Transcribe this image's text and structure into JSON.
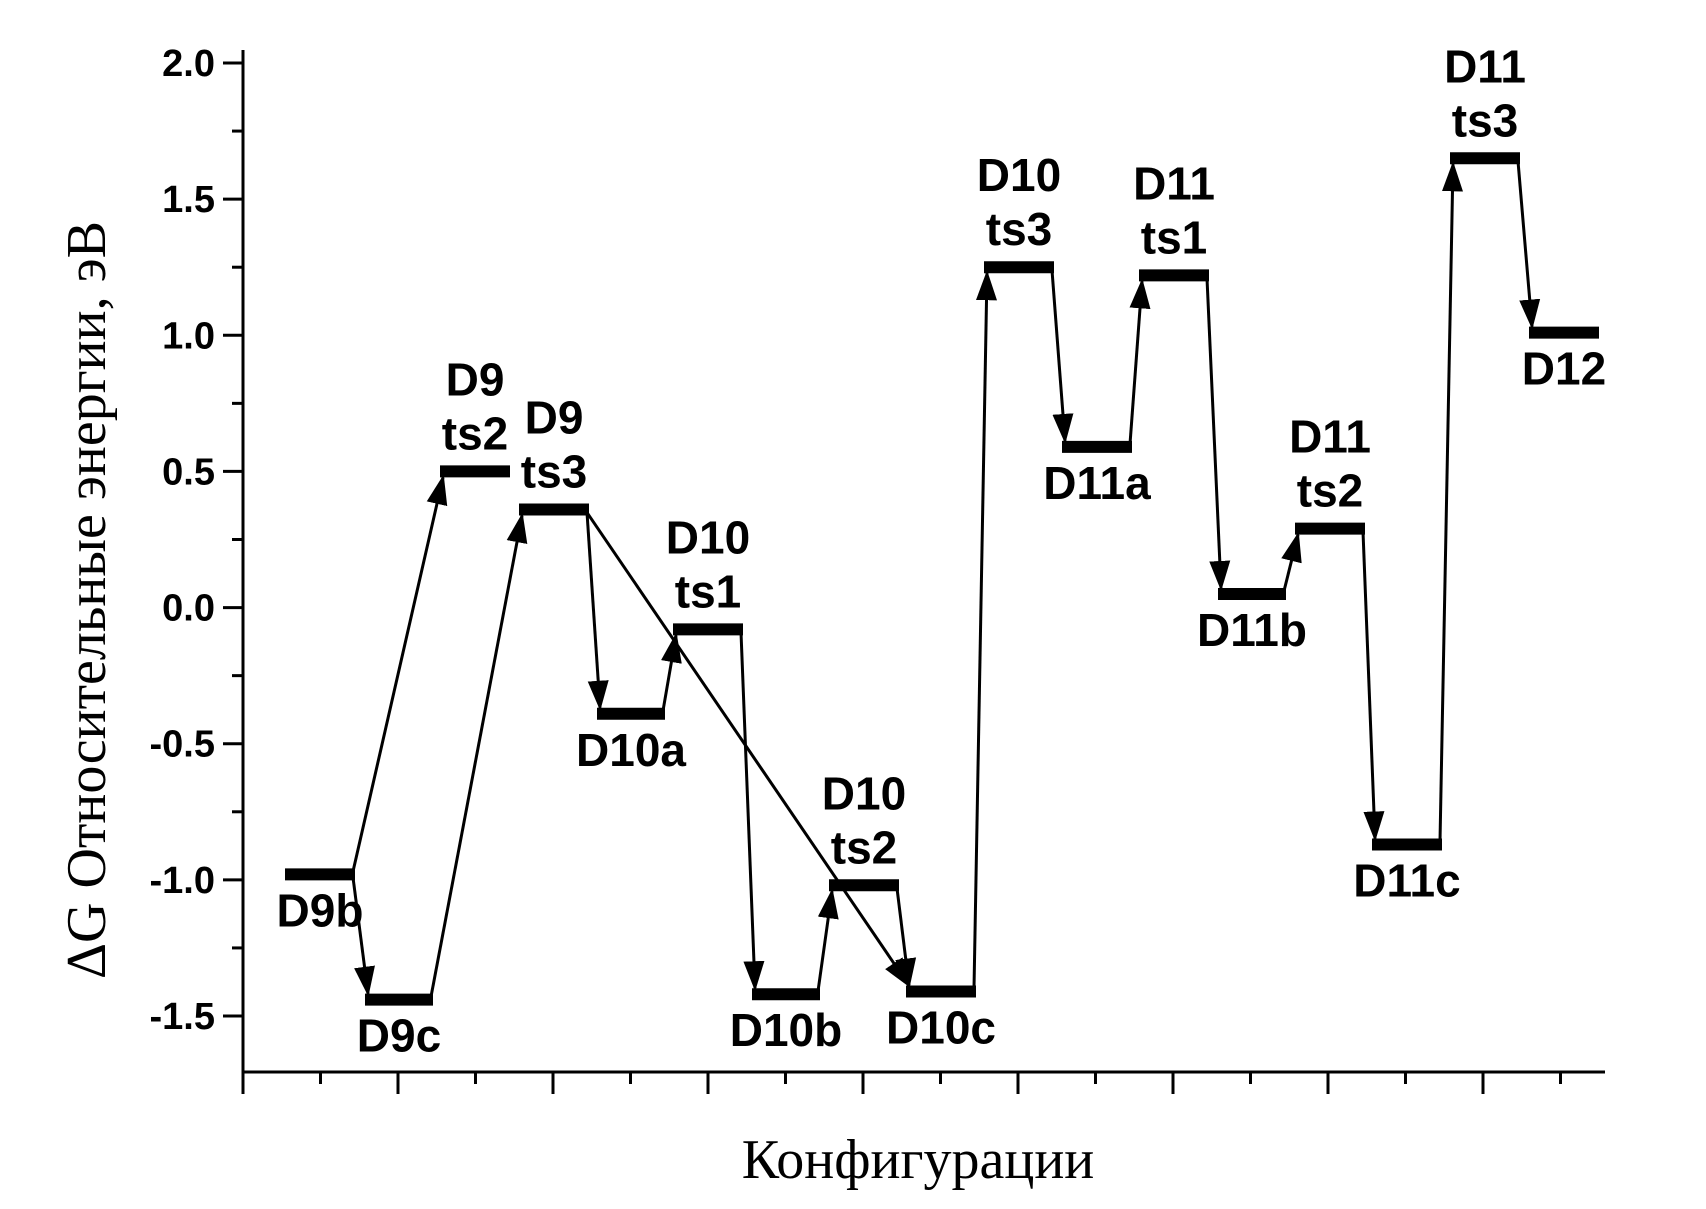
{
  "chart_data": {
    "type": "energy-level-diagram",
    "title": "",
    "xlabel": "Конфигурации",
    "ylabel": "ΔG  Относительные энергии, эВ",
    "ylim": [
      -1.7,
      2.0
    ],
    "yticks": [
      "2.0",
      "1.5",
      "1.0",
      "0.5",
      "0.0",
      "-0.5",
      "-1.0",
      "-1.5"
    ],
    "ytick_values": [
      2.0,
      1.5,
      1.0,
      0.5,
      0.0,
      -0.5,
      -1.0,
      -1.5
    ],
    "grid": false,
    "legend": "none",
    "states": [
      {
        "id": "D9b",
        "label_lines": [
          "D9b"
        ],
        "energy": -0.98,
        "label_pos": "below"
      },
      {
        "id": "D9c",
        "label_lines": [
          "D9c"
        ],
        "energy": -1.44,
        "label_pos": "below"
      },
      {
        "id": "D9ts2",
        "label_lines": [
          "D9",
          "ts2"
        ],
        "energy": 0.5,
        "label_pos": "above"
      },
      {
        "id": "D9ts3",
        "label_lines": [
          "D9",
          "ts3"
        ],
        "energy": 0.36,
        "label_pos": "above"
      },
      {
        "id": "D10a",
        "label_lines": [
          "D10a"
        ],
        "energy": -0.39,
        "label_pos": "below"
      },
      {
        "id": "D10ts1",
        "label_lines": [
          "D10",
          "ts1"
        ],
        "energy": -0.08,
        "label_pos": "above"
      },
      {
        "id": "D10b",
        "label_lines": [
          "D10b"
        ],
        "energy": -1.42,
        "label_pos": "below"
      },
      {
        "id": "D10ts2",
        "label_lines": [
          "D10",
          "ts2"
        ],
        "energy": -1.02,
        "label_pos": "above"
      },
      {
        "id": "D10c",
        "label_lines": [
          "D10c"
        ],
        "energy": -1.41,
        "label_pos": "below"
      },
      {
        "id": "D10ts3",
        "label_lines": [
          "D10",
          "ts3"
        ],
        "energy": 1.25,
        "label_pos": "above"
      },
      {
        "id": "D11a",
        "label_lines": [
          "D11a"
        ],
        "energy": 0.59,
        "label_pos": "below"
      },
      {
        "id": "D11ts1",
        "label_lines": [
          "D11",
          "ts1"
        ],
        "energy": 1.22,
        "label_pos": "above"
      },
      {
        "id": "D11b",
        "label_lines": [
          "D11b"
        ],
        "energy": 0.05,
        "label_pos": "below"
      },
      {
        "id": "D11ts2",
        "label_lines": [
          "D11",
          "ts2"
        ],
        "energy": 0.29,
        "label_pos": "above"
      },
      {
        "id": "D11c",
        "label_lines": [
          "D11c"
        ],
        "energy": -0.87,
        "label_pos": "below"
      },
      {
        "id": "D11ts3",
        "label_lines": [
          "D11",
          "ts3"
        ],
        "energy": 1.65,
        "label_pos": "above"
      },
      {
        "id": "D12",
        "label_lines": [
          "D12"
        ],
        "energy": 1.01,
        "label_pos": "below"
      }
    ],
    "transitions": [
      [
        "D9b",
        "D9c"
      ],
      [
        "D9b",
        "D9ts2"
      ],
      [
        "D9c",
        "D9ts3"
      ],
      [
        "D9ts3",
        "D10a"
      ],
      [
        "D9ts3",
        "D10c"
      ],
      [
        "D10a",
        "D10ts1"
      ],
      [
        "D10ts1",
        "D10b"
      ],
      [
        "D10b",
        "D10ts2"
      ],
      [
        "D10ts2",
        "D10c"
      ],
      [
        "D10c",
        "D10ts3"
      ],
      [
        "D10ts3",
        "D11a"
      ],
      [
        "D11a",
        "D11ts1"
      ],
      [
        "D11ts1",
        "D11b"
      ],
      [
        "D11b",
        "D11ts2"
      ],
      [
        "D11ts2",
        "D11c"
      ],
      [
        "D11c",
        "D11ts3"
      ],
      [
        "D11ts3",
        "D12"
      ]
    ]
  }
}
